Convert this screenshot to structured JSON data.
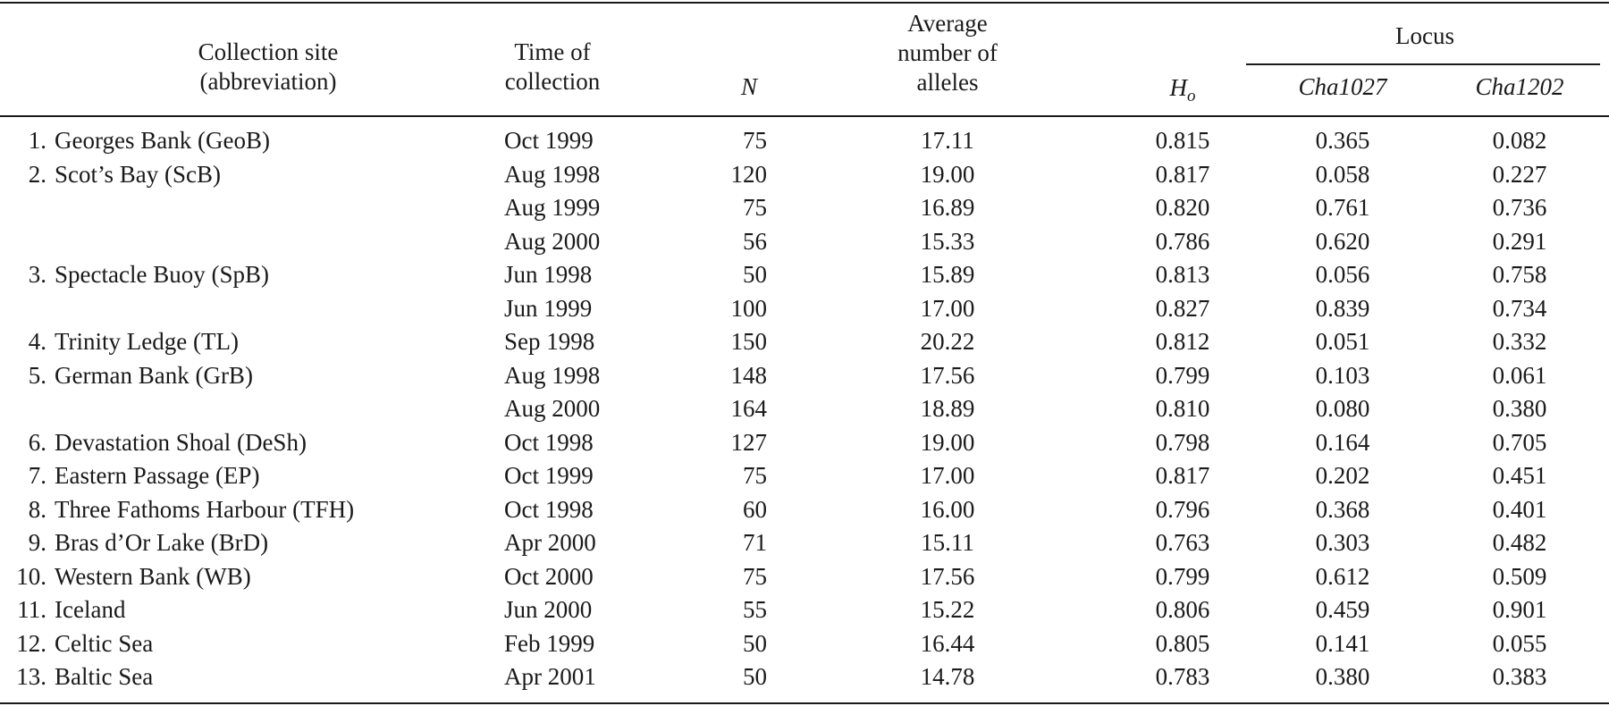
{
  "table": {
    "headers": {
      "site_line1": "Collection site",
      "site_line2": "(abbreviation)",
      "time_line1": "Time of",
      "time_line2": "collection",
      "n": "N",
      "alleles_line1": "Average",
      "alleles_line2": "number of",
      "alleles_line3": "alleles",
      "ho_main": "H",
      "ho_sub": "o",
      "locus": "Locus",
      "cha1027": "Cha1027",
      "cha1202": "Cha1202"
    },
    "rows": [
      {
        "num": "1.",
        "site": "Georges Bank (GeoB)",
        "time": "Oct 1999",
        "n": "75",
        "alleles": "17.11",
        "ho": "0.815",
        "cha1027": "0.365",
        "cha1202": "0.082"
      },
      {
        "num": "2.",
        "site": "Scot’s Bay (ScB)",
        "time": "Aug 1998",
        "n": "120",
        "alleles": "19.00",
        "ho": "0.817",
        "cha1027": "0.058",
        "cha1202": "0.227"
      },
      {
        "num": "",
        "site": "",
        "time": "Aug 1999",
        "n": "75",
        "alleles": "16.89",
        "ho": "0.820",
        "cha1027": "0.761",
        "cha1202": "0.736"
      },
      {
        "num": "",
        "site": "",
        "time": "Aug 2000",
        "n": "56",
        "alleles": "15.33",
        "ho": "0.786",
        "cha1027": "0.620",
        "cha1202": "0.291"
      },
      {
        "num": "3.",
        "site": "Spectacle Buoy (SpB)",
        "time": "Jun 1998",
        "n": "50",
        "alleles": "15.89",
        "ho": "0.813",
        "cha1027": "0.056",
        "cha1202": "0.758"
      },
      {
        "num": "",
        "site": "",
        "time": "Jun 1999",
        "n": "100",
        "alleles": "17.00",
        "ho": "0.827",
        "cha1027": "0.839",
        "cha1202": "0.734"
      },
      {
        "num": "4.",
        "site": "Trinity Ledge (TL)",
        "time": "Sep 1998",
        "n": "150",
        "alleles": "20.22",
        "ho": "0.812",
        "cha1027": "0.051",
        "cha1202": "0.332"
      },
      {
        "num": "5.",
        "site": "German Bank (GrB)",
        "time": "Aug 1998",
        "n": "148",
        "alleles": "17.56",
        "ho": "0.799",
        "cha1027": "0.103",
        "cha1202": "0.061"
      },
      {
        "num": "",
        "site": "",
        "time": "Aug 2000",
        "n": "164",
        "alleles": "18.89",
        "ho": "0.810",
        "cha1027": "0.080",
        "cha1202": "0.380"
      },
      {
        "num": "6.",
        "site": "Devastation Shoal (DeSh)",
        "time": "Oct 1998",
        "n": "127",
        "alleles": "19.00",
        "ho": "0.798",
        "cha1027": "0.164",
        "cha1202": "0.705"
      },
      {
        "num": "7.",
        "site": "Eastern Passage (EP)",
        "time": "Oct 1999",
        "n": "75",
        "alleles": "17.00",
        "ho": "0.817",
        "cha1027": "0.202",
        "cha1202": "0.451"
      },
      {
        "num": "8.",
        "site": "Three Fathoms Harbour (TFH)",
        "time": "Oct 1998",
        "n": "60",
        "alleles": "16.00",
        "ho": "0.796",
        "cha1027": "0.368",
        "cha1202": "0.401"
      },
      {
        "num": "9.",
        "site": "Bras d’Or Lake (BrD)",
        "time": "Apr 2000",
        "n": "71",
        "alleles": "15.11",
        "ho": "0.763",
        "cha1027": "0.303",
        "cha1202": "0.482"
      },
      {
        "num": "10.",
        "site": "Western Bank (WB)",
        "time": "Oct 2000",
        "n": "75",
        "alleles": "17.56",
        "ho": "0.799",
        "cha1027": "0.612",
        "cha1202": "0.509"
      },
      {
        "num": "11.",
        "site": "Iceland",
        "time": "Jun 2000",
        "n": "55",
        "alleles": "15.22",
        "ho": "0.806",
        "cha1027": "0.459",
        "cha1202": "0.901"
      },
      {
        "num": "12.",
        "site": "Celtic Sea",
        "time": "Feb 1999",
        "n": "50",
        "alleles": "16.44",
        "ho": "0.805",
        "cha1027": "0.141",
        "cha1202": "0.055"
      },
      {
        "num": "13.",
        "site": "Baltic Sea",
        "time": "Apr 2001",
        "n": "50",
        "alleles": "14.78",
        "ho": "0.783",
        "cha1027": "0.380",
        "cha1202": "0.383"
      }
    ]
  }
}
